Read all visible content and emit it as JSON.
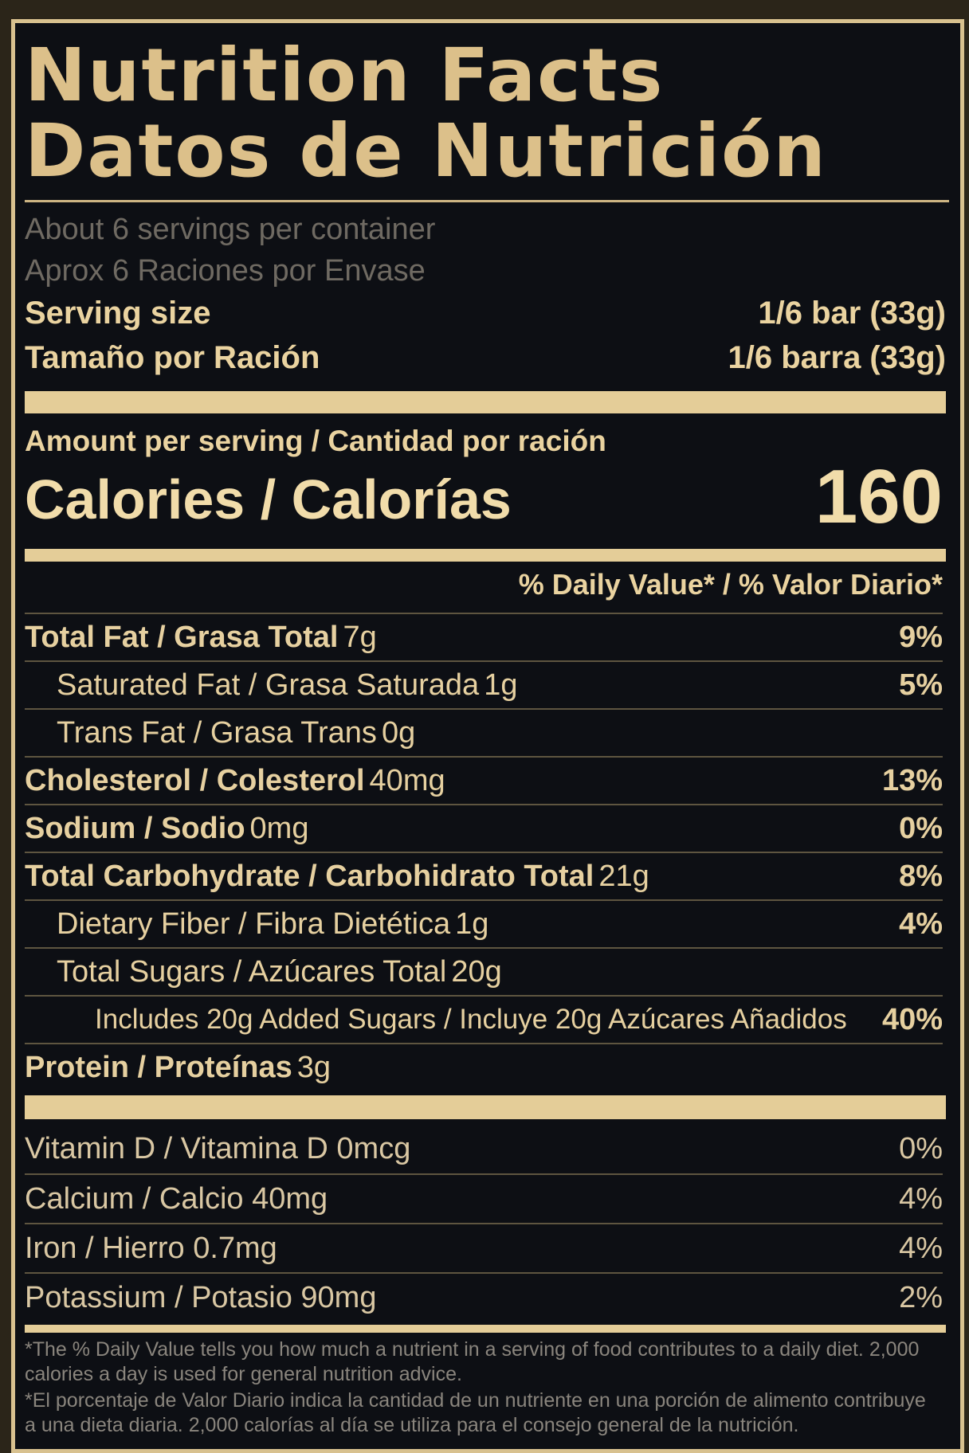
{
  "label": {
    "title_en": "Nutrition Facts",
    "title_es": "Datos de Nutrición",
    "servings_en": "About 6 servings per container",
    "servings_es": "Aprox 6 Raciones por Envase",
    "serving_size_label_en": "Serving size",
    "serving_size_value_en": "1/6 bar (33g)",
    "serving_size_label_es": "Tamaño por Ración",
    "serving_size_value_es": "1/6 barra (33g)",
    "amount_per_serving": "Amount per serving / Cantidad por ración",
    "calories_label": "Calories / Calorías",
    "calories_value": "160",
    "daily_value_header": "% Daily Value* / % Valor Diario*"
  },
  "nutrients": [
    {
      "name": "Total Fat / Grasa Total",
      "amount": "7g",
      "pct": "9%"
    },
    {
      "name": "Saturated Fat / Grasa Saturada",
      "amount": "1g",
      "pct": "5%"
    },
    {
      "name": "Trans Fat / Grasa Trans",
      "amount": "0g",
      "pct": ""
    },
    {
      "name": "Cholesterol / Colesterol",
      "amount": "40mg",
      "pct": "13%"
    },
    {
      "name": "Sodium / Sodio",
      "amount": "0mg",
      "pct": "0%"
    },
    {
      "name": "Total Carbohydrate / Carbohidrato Total",
      "amount": "21g",
      "pct": "8%"
    },
    {
      "name": "Dietary Fiber / Fibra Dietética",
      "amount": "1g",
      "pct": "4%"
    },
    {
      "name": "Total Sugars / Azúcares Total",
      "amount": "20g",
      "pct": ""
    },
    {
      "name": "Includes 20g Added Sugars / Incluye 20g Azúcares Añadidos",
      "amount": "",
      "pct": "40%"
    },
    {
      "name": "Protein / Proteínas",
      "amount": "3g",
      "pct": ""
    }
  ],
  "vitamins": [
    {
      "name": "Vitamin D / Vitamina D",
      "amount": "0mcg",
      "pct": "0%"
    },
    {
      "name": "Calcium / Calcio",
      "amount": "40mg",
      "pct": "4%"
    },
    {
      "name": "Iron / Hierro",
      "amount": "0.7mg",
      "pct": "4%"
    },
    {
      "name": "Potassium / Potasio",
      "amount": "90mg",
      "pct": "2%"
    }
  ],
  "footnote_en": "*The % Daily Value tells you how much a nutrient in a serving of food contributes to a daily diet. 2,000 calories a day is used for general nutrition advice.",
  "footnote_es": "*El porcentaje de Valor Diario indica la cantidad de un nutriente en una porción de alimento contribuye a una dieta diaria. 2,000 calorías al día se utiliza para el consejo general de la nutrición.",
  "colors": {
    "background": "#0d0f14",
    "gold": "#e4cd98",
    "muted_text": "#6f6a62"
  }
}
